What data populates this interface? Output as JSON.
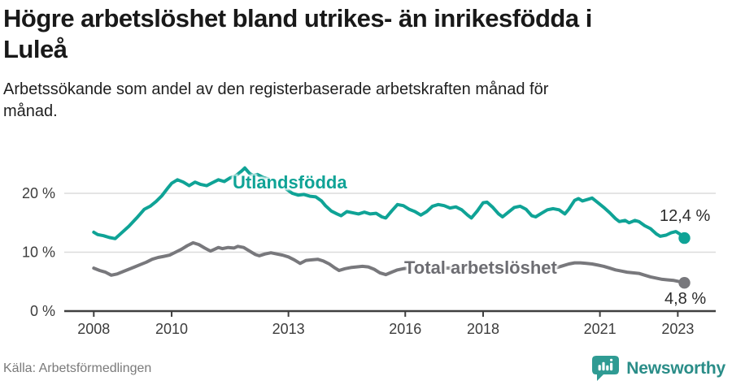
{
  "header": {
    "title_lines": [
      "Högre arbetslöshet bland utrikes- än inrikesfödda i",
      "Luleå"
    ],
    "subtitle_lines": [
      "Arbetssökande som andel av den registerbaserade arbetskraften månad för",
      "månad."
    ]
  },
  "footer": {
    "source": "Källa: Arbetsförmedlingen",
    "brand": "Newsworthy"
  },
  "colors": {
    "accent_teal": "#0fa396",
    "line_gray": "#78787c",
    "gridline": "#dcdcdc",
    "axis": "#3f3f3f",
    "logo_teal": "#2f9b93"
  },
  "chart_data": {
    "type": "line",
    "title": "Högre arbetslöshet bland utrikes- än inrikesfödda i Luleå",
    "subtitle": "Arbetssökande som andel av den registerbaserade arbetskraften månad för månad.",
    "source": "Källa: Arbetsförmedlingen",
    "unit": "%",
    "grid": true,
    "legend_position": "inline-labels",
    "x_axis": {
      "ticks": [
        2008,
        2010,
        2013,
        2016,
        2018,
        2021,
        2023
      ],
      "range": [
        2007.25,
        2023.95
      ]
    },
    "y_axis": {
      "ticks": [
        {
          "value": 0,
          "label": "0 %"
        },
        {
          "value": 10,
          "label": "10 %"
        },
        {
          "value": 20,
          "label": "20 %"
        }
      ],
      "range": [
        0,
        26
      ]
    },
    "series": [
      {
        "name": "Utlandsfödda",
        "color": "#0fa396",
        "end_label": "12,4 %",
        "end_value": 12.4,
        "points": [
          [
            2008.0,
            13.4
          ],
          [
            2008.1,
            13.0
          ],
          [
            2008.25,
            12.8
          ],
          [
            2008.4,
            12.5
          ],
          [
            2008.55,
            12.3
          ],
          [
            2008.7,
            13.2
          ],
          [
            2008.9,
            14.4
          ],
          [
            2009.1,
            15.8
          ],
          [
            2009.3,
            17.3
          ],
          [
            2009.45,
            17.8
          ],
          [
            2009.6,
            18.6
          ],
          [
            2009.75,
            19.6
          ],
          [
            2009.9,
            20.9
          ],
          [
            2010.0,
            21.7
          ],
          [
            2010.15,
            22.3
          ],
          [
            2010.3,
            21.9
          ],
          [
            2010.45,
            21.3
          ],
          [
            2010.6,
            21.9
          ],
          [
            2010.75,
            21.5
          ],
          [
            2010.9,
            21.3
          ],
          [
            2011.05,
            21.8
          ],
          [
            2011.2,
            22.3
          ],
          [
            2011.35,
            22.0
          ],
          [
            2011.5,
            22.6
          ],
          [
            2011.65,
            23.0
          ],
          [
            2011.8,
            23.8
          ],
          [
            2011.88,
            24.3
          ],
          [
            2012.0,
            23.4
          ],
          [
            2012.1,
            23.0
          ],
          [
            2012.2,
            23.2
          ],
          [
            2012.35,
            22.7
          ],
          [
            2012.5,
            22.4
          ],
          [
            2012.65,
            22.1
          ],
          [
            2012.8,
            21.5
          ],
          [
            2012.95,
            20.7
          ],
          [
            2013.1,
            20.0
          ],
          [
            2013.25,
            19.7
          ],
          [
            2013.4,
            19.8
          ],
          [
            2013.55,
            19.5
          ],
          [
            2013.7,
            19.4
          ],
          [
            2013.85,
            18.7
          ],
          [
            2013.95,
            17.9
          ],
          [
            2014.1,
            17.0
          ],
          [
            2014.25,
            16.5
          ],
          [
            2014.35,
            16.2
          ],
          [
            2014.5,
            16.9
          ],
          [
            2014.65,
            16.7
          ],
          [
            2014.8,
            16.5
          ],
          [
            2014.95,
            16.8
          ],
          [
            2015.1,
            16.5
          ],
          [
            2015.25,
            16.6
          ],
          [
            2015.4,
            16.0
          ],
          [
            2015.5,
            15.8
          ],
          [
            2015.65,
            17.0
          ],
          [
            2015.8,
            18.1
          ],
          [
            2015.95,
            17.9
          ],
          [
            2016.1,
            17.3
          ],
          [
            2016.25,
            16.9
          ],
          [
            2016.4,
            16.3
          ],
          [
            2016.55,
            16.9
          ],
          [
            2016.7,
            17.8
          ],
          [
            2016.85,
            18.1
          ],
          [
            2017.0,
            17.9
          ],
          [
            2017.15,
            17.5
          ],
          [
            2017.3,
            17.7
          ],
          [
            2017.45,
            17.2
          ],
          [
            2017.6,
            16.3
          ],
          [
            2017.7,
            15.8
          ],
          [
            2017.85,
            17.0
          ],
          [
            2018.0,
            18.4
          ],
          [
            2018.1,
            18.5
          ],
          [
            2018.25,
            17.6
          ],
          [
            2018.4,
            16.5
          ],
          [
            2018.5,
            16.0
          ],
          [
            2018.65,
            16.8
          ],
          [
            2018.8,
            17.6
          ],
          [
            2018.95,
            17.8
          ],
          [
            2019.1,
            17.3
          ],
          [
            2019.25,
            16.2
          ],
          [
            2019.35,
            16.0
          ],
          [
            2019.5,
            16.6
          ],
          [
            2019.65,
            17.2
          ],
          [
            2019.8,
            17.4
          ],
          [
            2019.95,
            17.2
          ],
          [
            2020.1,
            16.5
          ],
          [
            2020.2,
            17.3
          ],
          [
            2020.35,
            18.8
          ],
          [
            2020.45,
            19.1
          ],
          [
            2020.55,
            18.7
          ],
          [
            2020.7,
            19.0
          ],
          [
            2020.8,
            19.2
          ],
          [
            2020.95,
            18.4
          ],
          [
            2021.1,
            17.6
          ],
          [
            2021.25,
            16.7
          ],
          [
            2021.4,
            15.7
          ],
          [
            2021.5,
            15.2
          ],
          [
            2021.65,
            15.4
          ],
          [
            2021.75,
            15.0
          ],
          [
            2021.9,
            15.4
          ],
          [
            2022.0,
            15.2
          ],
          [
            2022.15,
            14.5
          ],
          [
            2022.3,
            14.0
          ],
          [
            2022.45,
            13.1
          ],
          [
            2022.55,
            12.7
          ],
          [
            2022.7,
            12.9
          ],
          [
            2022.83,
            13.3
          ],
          [
            2022.95,
            13.5
          ],
          [
            2023.05,
            13.1
          ],
          [
            2023.17,
            12.4
          ]
        ]
      },
      {
        "name": "Total arbetslöshet",
        "color": "#78787c",
        "end_label": "4,8 %",
        "end_value": 4.8,
        "points": [
          [
            2008.0,
            7.3
          ],
          [
            2008.15,
            6.9
          ],
          [
            2008.3,
            6.6
          ],
          [
            2008.45,
            6.1
          ],
          [
            2008.6,
            6.3
          ],
          [
            2008.75,
            6.7
          ],
          [
            2008.9,
            7.1
          ],
          [
            2009.05,
            7.5
          ],
          [
            2009.2,
            7.9
          ],
          [
            2009.35,
            8.3
          ],
          [
            2009.5,
            8.8
          ],
          [
            2009.65,
            9.1
          ],
          [
            2009.8,
            9.3
          ],
          [
            2009.95,
            9.5
          ],
          [
            2010.1,
            10.0
          ],
          [
            2010.25,
            10.5
          ],
          [
            2010.4,
            11.1
          ],
          [
            2010.55,
            11.6
          ],
          [
            2010.7,
            11.3
          ],
          [
            2010.85,
            10.7
          ],
          [
            2011.0,
            10.2
          ],
          [
            2011.1,
            10.5
          ],
          [
            2011.2,
            10.8
          ],
          [
            2011.3,
            10.6
          ],
          [
            2011.45,
            10.8
          ],
          [
            2011.6,
            10.7
          ],
          [
            2011.7,
            11.0
          ],
          [
            2011.85,
            10.8
          ],
          [
            2012.0,
            10.2
          ],
          [
            2012.15,
            9.6
          ],
          [
            2012.25,
            9.4
          ],
          [
            2012.4,
            9.7
          ],
          [
            2012.55,
            9.9
          ],
          [
            2012.7,
            9.7
          ],
          [
            2012.85,
            9.5
          ],
          [
            2013.0,
            9.2
          ],
          [
            2013.15,
            8.7
          ],
          [
            2013.3,
            8.1
          ],
          [
            2013.45,
            8.6
          ],
          [
            2013.6,
            8.7
          ],
          [
            2013.75,
            8.8
          ],
          [
            2013.9,
            8.5
          ],
          [
            2014.05,
            8.0
          ],
          [
            2014.2,
            7.3
          ],
          [
            2014.3,
            6.9
          ],
          [
            2014.45,
            7.2
          ],
          [
            2014.6,
            7.4
          ],
          [
            2014.75,
            7.5
          ],
          [
            2014.9,
            7.6
          ],
          [
            2015.05,
            7.5
          ],
          [
            2015.2,
            7.1
          ],
          [
            2015.35,
            6.5
          ],
          [
            2015.5,
            6.2
          ],
          [
            2015.65,
            6.6
          ],
          [
            2015.8,
            7.0
          ],
          [
            2015.95,
            7.2
          ],
          [
            2016.1,
            7.3
          ],
          [
            2016.3,
            7.2
          ],
          [
            2016.5,
            7.0
          ],
          [
            2016.7,
            7.3
          ],
          [
            2016.9,
            7.4
          ],
          [
            2017.1,
            7.3
          ],
          [
            2017.3,
            7.2
          ],
          [
            2017.5,
            7.3
          ],
          [
            2017.7,
            7.1
          ],
          [
            2017.9,
            7.3
          ],
          [
            2018.1,
            7.4
          ],
          [
            2018.3,
            7.2
          ],
          [
            2018.5,
            7.1
          ],
          [
            2018.7,
            7.2
          ],
          [
            2018.9,
            7.3
          ],
          [
            2019.1,
            7.1
          ],
          [
            2019.3,
            7.0
          ],
          [
            2019.5,
            7.1
          ],
          [
            2019.7,
            7.2
          ],
          [
            2019.9,
            7.4
          ],
          [
            2020.05,
            7.7
          ],
          [
            2020.2,
            8.0
          ],
          [
            2020.35,
            8.2
          ],
          [
            2020.5,
            8.2
          ],
          [
            2020.65,
            8.1
          ],
          [
            2020.8,
            8.0
          ],
          [
            2020.95,
            7.8
          ],
          [
            2021.1,
            7.6
          ],
          [
            2021.25,
            7.3
          ],
          [
            2021.4,
            7.0
          ],
          [
            2021.55,
            6.8
          ],
          [
            2021.7,
            6.6
          ],
          [
            2021.85,
            6.5
          ],
          [
            2022.0,
            6.4
          ],
          [
            2022.15,
            6.1
          ],
          [
            2022.3,
            5.8
          ],
          [
            2022.45,
            5.6
          ],
          [
            2022.6,
            5.4
          ],
          [
            2022.75,
            5.3
          ],
          [
            2022.9,
            5.2
          ],
          [
            2023.05,
            5.0
          ],
          [
            2023.17,
            4.8
          ]
        ]
      }
    ]
  }
}
